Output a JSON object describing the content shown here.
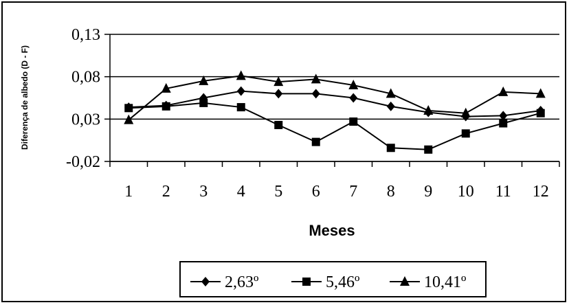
{
  "chart_data": {
    "type": "line",
    "xlabel": "Meses",
    "ylabel": "Diferença de albedo (D - F)",
    "x": [
      1,
      2,
      3,
      4,
      5,
      6,
      7,
      8,
      9,
      10,
      11,
      12
    ],
    "ylim": [
      -0.02,
      0.13
    ],
    "yticks": [
      "0,13",
      "0,08",
      "0,03",
      "-0,02"
    ],
    "ytick_values": [
      0.13,
      0.08,
      0.03,
      -0.02
    ],
    "xticks": [
      "1",
      "2",
      "3",
      "4",
      "5",
      "6",
      "7",
      "8",
      "9",
      "10",
      "11",
      "12"
    ],
    "grid": "horizontal",
    "legend_position": "bottom",
    "series": [
      {
        "name": "2,63º",
        "marker": "diamond",
        "color": "#000000",
        "values": [
          0.044,
          0.046,
          0.055,
          0.063,
          0.06,
          0.06,
          0.055,
          0.045,
          0.038,
          0.033,
          0.034,
          0.04
        ]
      },
      {
        "name": "5,46º",
        "marker": "square",
        "color": "#000000",
        "values": [
          0.043,
          0.045,
          0.049,
          0.044,
          0.023,
          0.003,
          0.027,
          -0.004,
          -0.006,
          0.013,
          0.025,
          0.037
        ]
      },
      {
        "name": "10,41º",
        "marker": "triangle",
        "color": "#000000",
        "values": [
          0.029,
          0.066,
          0.075,
          0.081,
          0.074,
          0.077,
          0.07,
          0.06,
          0.04,
          0.037,
          0.062,
          0.06
        ]
      }
    ]
  }
}
